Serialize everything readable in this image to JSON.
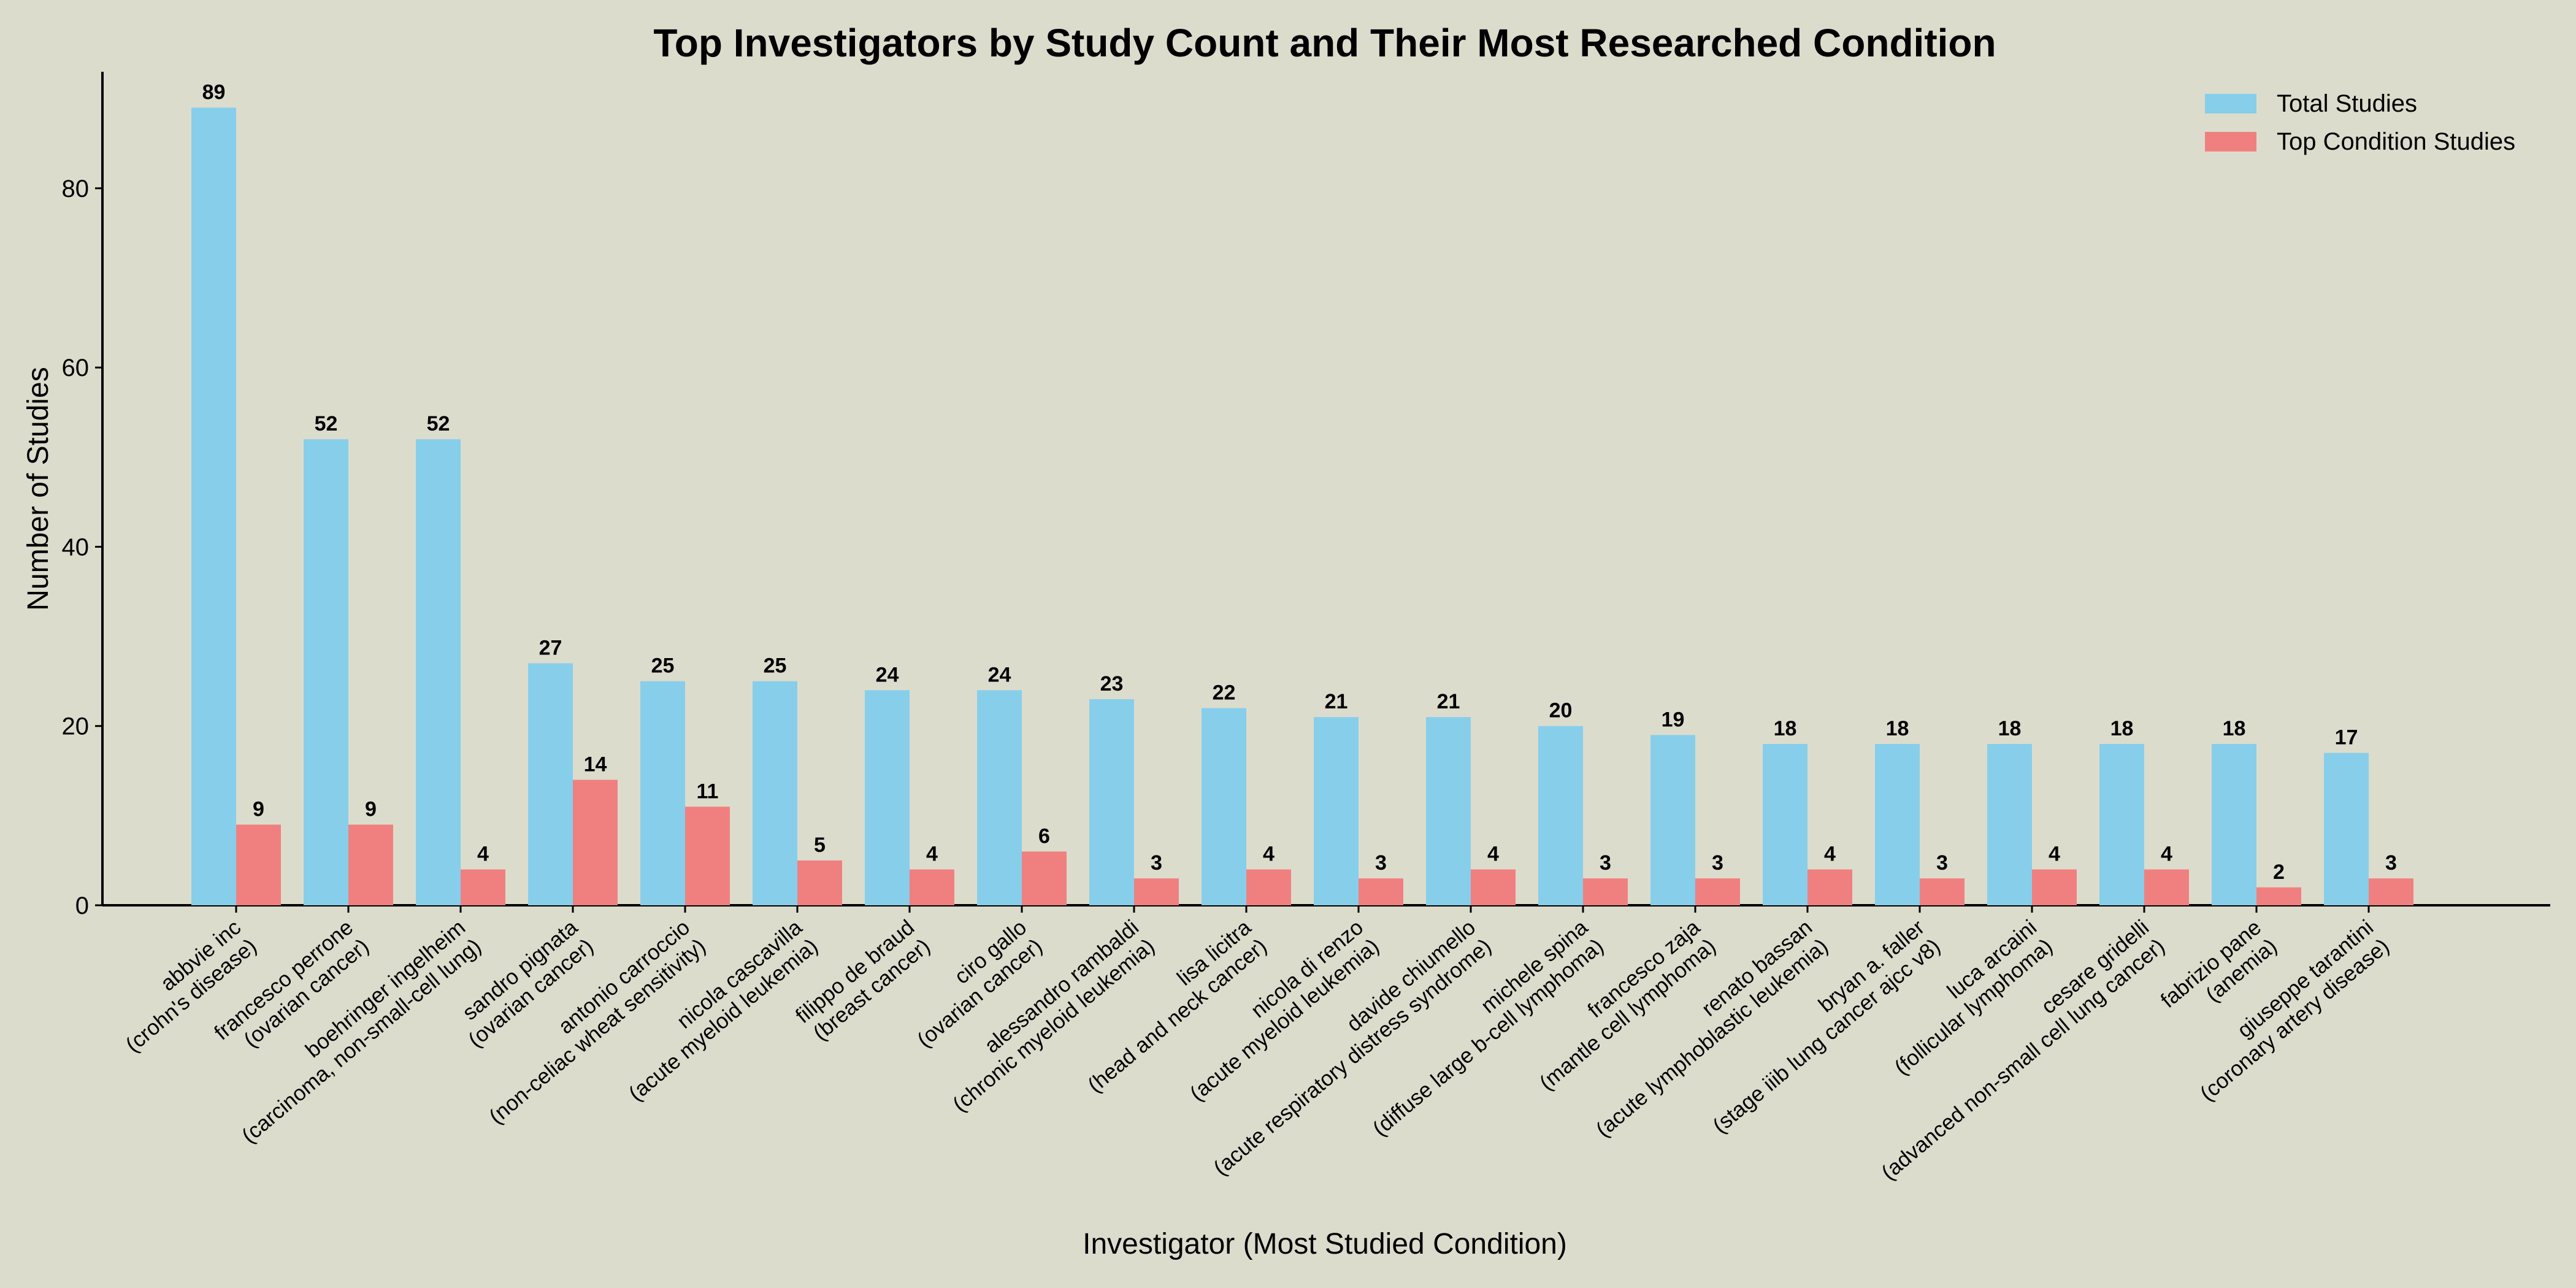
{
  "chart_data": {
    "type": "bar",
    "title": "Top Investigators by Study Count and Their Most Researched Condition",
    "xlabel": "Investigator (Most Studied Condition)",
    "ylabel": "Number of Studies",
    "ylim": [
      0,
      93
    ],
    "yticks": [
      0,
      20,
      40,
      60,
      80
    ],
    "legend_position": "top-right",
    "categories": [
      {
        "name": "abbvie inc",
        "condition": "(crohn's disease)"
      },
      {
        "name": "francesco perrone",
        "condition": "(ovarian cancer)"
      },
      {
        "name": "boehringer ingelheim",
        "condition": "(carcinoma, non-small-cell lung)"
      },
      {
        "name": "sandro pignata",
        "condition": "(ovarian cancer)"
      },
      {
        "name": "antonio carroccio",
        "condition": "(non-celiac wheat sensitivity)"
      },
      {
        "name": "nicola cascavilla",
        "condition": "(acute myeloid leukemia)"
      },
      {
        "name": "filippo de braud",
        "condition": "(breast cancer)"
      },
      {
        "name": "ciro gallo",
        "condition": "(ovarian cancer)"
      },
      {
        "name": "alessandro rambaldi",
        "condition": "(chronic myeloid leukemia)"
      },
      {
        "name": "lisa licitra",
        "condition": "(head and neck cancer)"
      },
      {
        "name": "nicola di renzo",
        "condition": "(acute myeloid leukemia)"
      },
      {
        "name": "davide chiumello",
        "condition": "(acute respiratory distress syndrome)"
      },
      {
        "name": "michele spina",
        "condition": "(diffuse large b-cell lymphoma)"
      },
      {
        "name": "francesco zaja",
        "condition": "(mantle cell lymphoma)"
      },
      {
        "name": "renato bassan",
        "condition": "(acute lymphoblastic leukemia)"
      },
      {
        "name": "bryan a. faller",
        "condition": "(stage iiib lung cancer ajcc v8)"
      },
      {
        "name": "luca arcaini",
        "condition": "(follicular lymphoma)"
      },
      {
        "name": "cesare gridelli",
        "condition": "(advanced non-small cell lung cancer)"
      },
      {
        "name": "fabrizio pane",
        "condition": "(anemia)"
      },
      {
        "name": "giuseppe tarantini",
        "condition": "(coronary artery disease)"
      }
    ],
    "series": [
      {
        "name": "Total Studies",
        "color": "#87ceeb",
        "values": [
          89,
          52,
          52,
          27,
          25,
          25,
          24,
          24,
          23,
          22,
          21,
          21,
          20,
          19,
          18,
          18,
          18,
          18,
          18,
          17
        ]
      },
      {
        "name": "Top Condition Studies",
        "color": "#f08080",
        "values": [
          9,
          9,
          4,
          14,
          11,
          5,
          4,
          6,
          3,
          4,
          3,
          4,
          3,
          3,
          4,
          3,
          4,
          4,
          2,
          3
        ]
      }
    ]
  }
}
